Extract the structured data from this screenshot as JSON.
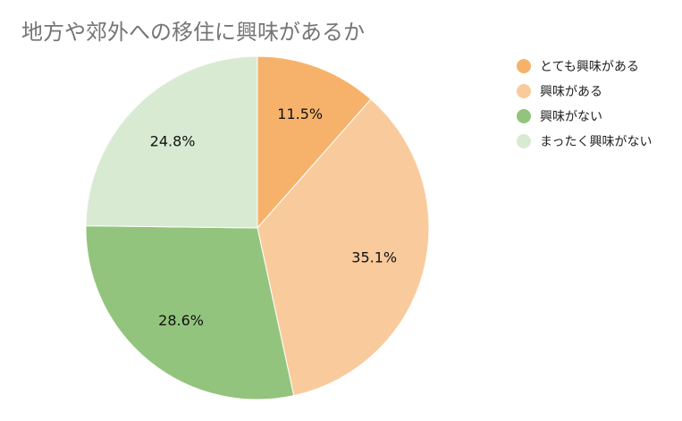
{
  "chart_data": {
    "type": "pie",
    "title": "地方や郊外への移住に興味があるか",
    "legend_position": "right",
    "categories": [
      "とても興味がある",
      "興味がある",
      "興味がない",
      "まったく興味がない"
    ],
    "values": [
      11.5,
      35.1,
      28.6,
      24.8
    ],
    "value_labels": [
      "11.5%",
      "35.1%",
      "28.6%",
      "24.8%"
    ],
    "unit": "%",
    "colors": [
      "#f6b26b",
      "#f9cb9c",
      "#93c47d",
      "#d9ead3"
    ]
  }
}
